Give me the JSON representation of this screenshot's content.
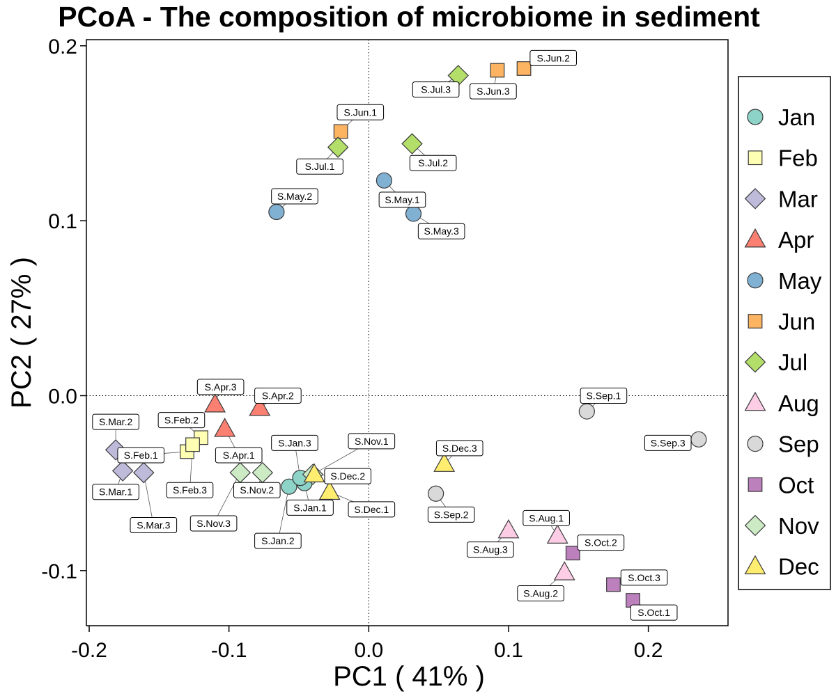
{
  "chart_data": {
    "type": "scatter",
    "title": "PCoA - The composition of microbiome in sediment",
    "xlabel": "PC1 ( 41% )",
    "ylabel": "PC2 ( 27% )",
    "xlim": [
      -0.202,
      0.257
    ],
    "ylim": [
      -0.1315,
      0.2035
    ],
    "xticks": [
      -0.2,
      -0.1,
      0.0,
      0.1,
      0.2
    ],
    "xtick_labels": [
      "-0.2",
      "-0.1",
      "0.0",
      "0.1",
      "0.2"
    ],
    "yticks": [
      -0.1,
      0.0,
      0.1,
      0.2
    ],
    "ytick_labels": [
      "-0.1",
      "0.0",
      "0.1",
      "0.2"
    ],
    "reference_lines": {
      "x": 0.0,
      "y": 0.0,
      "style": "dotted"
    },
    "grid": false,
    "legend_position": "right",
    "series": [
      {
        "name": "Jan",
        "shape": "circle",
        "color": "#8dd3c7",
        "points": [
          {
            "label": "S.Jan.1",
            "x": -0.046,
            "y": -0.05,
            "lx": -0.042,
            "ly": -0.064
          },
          {
            "label": "S.Jan.2",
            "x": -0.057,
            "y": -0.052,
            "lx": -0.065,
            "ly": -0.083
          },
          {
            "label": "S.Jan.3",
            "x": -0.049,
            "y": -0.047,
            "lx": -0.053,
            "ly": -0.027
          }
        ]
      },
      {
        "name": "Feb",
        "shape": "square",
        "color": "#ffffb3",
        "points": [
          {
            "label": "S.Feb.1",
            "x": -0.13,
            "y": -0.032,
            "lx": -0.163,
            "ly": -0.034
          },
          {
            "label": "S.Feb.2",
            "x": -0.12,
            "y": -0.024,
            "lx": -0.134,
            "ly": -0.014
          },
          {
            "label": "S.Feb.3",
            "x": -0.126,
            "y": -0.028,
            "lx": -0.128,
            "ly": -0.054
          }
        ]
      },
      {
        "name": "Mar",
        "shape": "diamond",
        "color": "#bebada",
        "points": [
          {
            "label": "S.Mar.1",
            "x": -0.176,
            "y": -0.043,
            "lx": -0.181,
            "ly": -0.055
          },
          {
            "label": "S.Mar.2",
            "x": -0.181,
            "y": -0.031,
            "lx": -0.181,
            "ly": -0.015
          },
          {
            "label": "S.Mar.3",
            "x": -0.161,
            "y": -0.044,
            "lx": -0.154,
            "ly": -0.074
          }
        ]
      },
      {
        "name": "Apr",
        "shape": "triangle",
        "color": "#fb8072",
        "points": [
          {
            "label": "S.Apr.1",
            "x": -0.103,
            "y": -0.019,
            "lx": -0.093,
            "ly": -0.034
          },
          {
            "label": "S.Apr.2",
            "x": -0.078,
            "y": -0.007,
            "lx": -0.065,
            "ly": 0.0
          },
          {
            "label": "S.Apr.3",
            "x": -0.11,
            "y": -0.005,
            "lx": -0.106,
            "ly": 0.005
          }
        ]
      },
      {
        "name": "May",
        "shape": "circle",
        "color": "#80b1d3",
        "points": [
          {
            "label": "S.May.1",
            "x": 0.011,
            "y": 0.123,
            "lx": 0.024,
            "ly": 0.112
          },
          {
            "label": "S.May.2",
            "x": -0.066,
            "y": 0.105,
            "lx": -0.053,
            "ly": 0.114
          },
          {
            "label": "S.May.3",
            "x": 0.032,
            "y": 0.104,
            "lx": 0.052,
            "ly": 0.094
          }
        ]
      },
      {
        "name": "Jun",
        "shape": "square",
        "color": "#fdb462",
        "points": [
          {
            "label": "S.Jun.1",
            "x": -0.02,
            "y": 0.151,
            "lx": -0.006,
            "ly": 0.162
          },
          {
            "label": "S.Jun.2",
            "x": 0.111,
            "y": 0.187,
            "lx": 0.132,
            "ly": 0.193
          },
          {
            "label": "S.Jun.3",
            "x": 0.092,
            "y": 0.186,
            "lx": 0.089,
            "ly": 0.174
          }
        ]
      },
      {
        "name": "Jul",
        "shape": "diamond",
        "color": "#b3de69",
        "points": [
          {
            "label": "S.Jul.1",
            "x": -0.022,
            "y": 0.142,
            "lx": -0.035,
            "ly": 0.131
          },
          {
            "label": "S.Jul.2",
            "x": 0.031,
            "y": 0.144,
            "lx": 0.046,
            "ly": 0.133
          },
          {
            "label": "S.Jul.3",
            "x": 0.064,
            "y": 0.183,
            "lx": 0.048,
            "ly": 0.175
          }
        ]
      },
      {
        "name": "Aug",
        "shape": "triangle",
        "color": "#fccde5",
        "points": [
          {
            "label": "S.Aug.1",
            "x": 0.135,
            "y": -0.08,
            "lx": 0.127,
            "ly": -0.07
          },
          {
            "label": "S.Aug.2",
            "x": 0.14,
            "y": -0.101,
            "lx": 0.123,
            "ly": -0.113
          },
          {
            "label": "S.Aug.3",
            "x": 0.1,
            "y": -0.077,
            "lx": 0.087,
            "ly": -0.088
          }
        ]
      },
      {
        "name": "Sep",
        "shape": "circle",
        "color": "#d9d9d9",
        "points": [
          {
            "label": "S.Sep.1",
            "x": 0.156,
            "y": -0.009,
            "lx": 0.168,
            "ly": 0.0
          },
          {
            "label": "S.Sep.2",
            "x": 0.048,
            "y": -0.056,
            "lx": 0.059,
            "ly": -0.068
          },
          {
            "label": "S.Sep.3",
            "x": 0.236,
            "y": -0.025,
            "lx": 0.214,
            "ly": -0.027
          }
        ]
      },
      {
        "name": "Oct",
        "shape": "square",
        "color": "#bc80bd",
        "points": [
          {
            "label": "S.Oct.1",
            "x": 0.189,
            "y": -0.117,
            "lx": 0.204,
            "ly": -0.124
          },
          {
            "label": "S.Oct.2",
            "x": 0.146,
            "y": -0.09,
            "lx": 0.166,
            "ly": -0.084
          },
          {
            "label": "S.Oct.3",
            "x": 0.175,
            "y": -0.108,
            "lx": 0.197,
            "ly": -0.104
          }
        ]
      },
      {
        "name": "Nov",
        "shape": "diamond",
        "color": "#ccebc5",
        "points": [
          {
            "label": "S.Nov.1",
            "x": -0.04,
            "y": -0.045,
            "lx": 0.002,
            "ly": -0.026
          },
          {
            "label": "S.Nov.2",
            "x": -0.076,
            "y": -0.044,
            "lx": -0.08,
            "ly": -0.054
          },
          {
            "label": "S.Nov.3",
            "x": -0.092,
            "y": -0.044,
            "lx": -0.111,
            "ly": -0.073
          }
        ]
      },
      {
        "name": "Dec",
        "shape": "triangle",
        "color": "#ffed6f",
        "points": [
          {
            "label": "S.Dec.1",
            "x": -0.028,
            "y": -0.055,
            "lx": 0.002,
            "ly": -0.065
          },
          {
            "label": "S.Dec.2",
            "x": -0.039,
            "y": -0.045,
            "lx": -0.015,
            "ly": -0.046
          },
          {
            "label": "S.Dec.3",
            "x": 0.054,
            "y": -0.039,
            "lx": 0.065,
            "ly": -0.03
          }
        ]
      }
    ]
  }
}
